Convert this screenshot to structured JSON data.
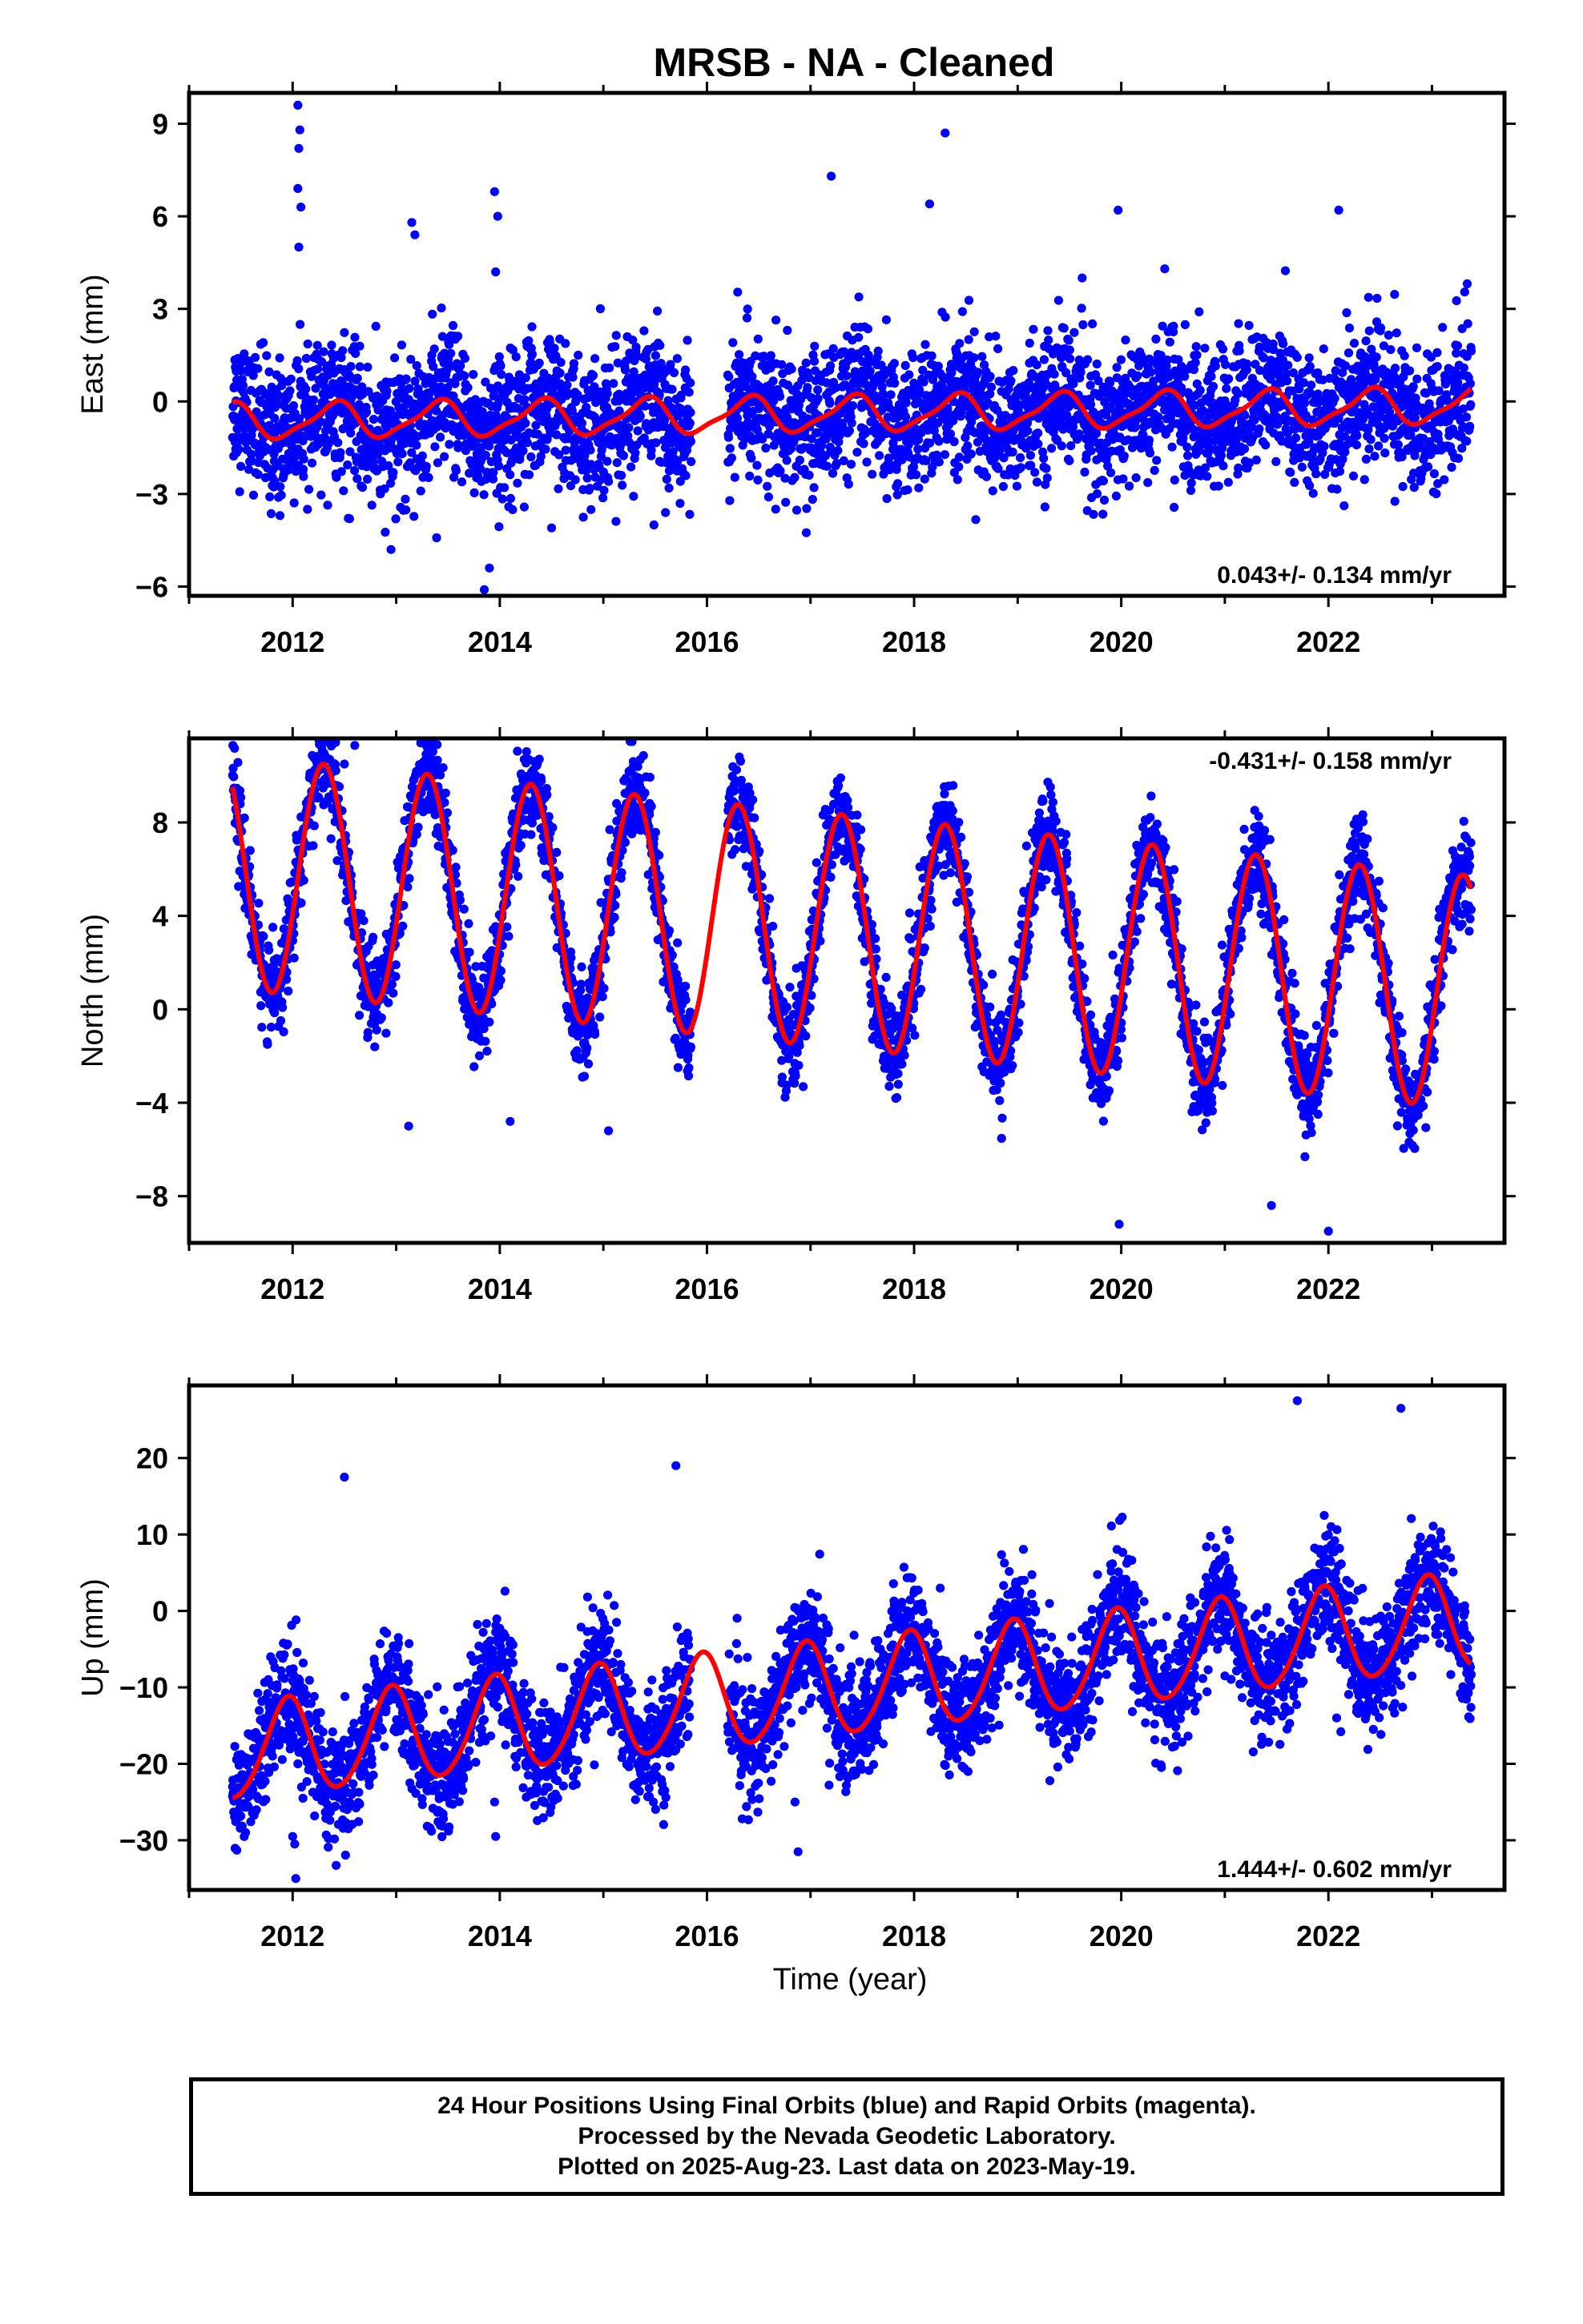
{
  "title": "MRSB  - NA - Cleaned",
  "xlabel": "Time (year)",
  "footer": {
    "line1": "24 Hour Positions Using Final Orbits (blue) and Rapid Orbits (magenta).",
    "line2": "Processed by the Nevada Geodetic Laboratory.",
    "line3": "Plotted on 2025-Aug-23. Last data on 2023-May-19."
  },
  "colors": {
    "points": "#0000ff",
    "model": "#ff0000",
    "axes": "#000000"
  },
  "chart_data": [
    {
      "type": "scatter",
      "name": "east",
      "ylabel": "East (mm)",
      "xlim": [
        2011.0,
        2023.7
      ],
      "ylim": [
        -6.3,
        10.0
      ],
      "yticks": [
        -6,
        -3,
        0,
        3,
        6,
        9
      ],
      "xticks": [
        2012,
        2014,
        2016,
        2018,
        2020,
        2022
      ],
      "rate_label": "0.043+/- 0.134 mm/yr",
      "rate_position": "bottom-right",
      "data_span": [
        2011.42,
        2023.38
      ],
      "gap": [
        2015.85,
        2016.2
      ],
      "model": {
        "offset": -0.4,
        "trend_mm_per_yr": 0.043,
        "annual_amp": 0.55,
        "annual_phase": 0.4,
        "semiannual_amp": 0.15
      },
      "scatter_sd": 1.1,
      "outliers": [
        [
          2012.05,
          9.6
        ],
        [
          2012.07,
          8.8
        ],
        [
          2012.06,
          8.2
        ],
        [
          2012.05,
          6.9
        ],
        [
          2012.08,
          6.3
        ],
        [
          2012.06,
          5.0
        ],
        [
          2013.15,
          5.8
        ],
        [
          2013.18,
          5.4
        ],
        [
          2013.95,
          6.8
        ],
        [
          2013.98,
          6.0
        ],
        [
          2013.96,
          4.2
        ],
        [
          2017.2,
          7.3
        ],
        [
          2018.15,
          6.4
        ],
        [
          2018.3,
          8.7
        ],
        [
          2019.97,
          6.2
        ],
        [
          2022.1,
          6.2
        ],
        [
          2012.55,
          -3.8
        ],
        [
          2012.95,
          -4.8
        ],
        [
          2013.85,
          -6.1
        ],
        [
          2013.9,
          -5.4
        ],
        [
          2014.5,
          -4.1
        ],
        [
          2015.6,
          -3.6
        ]
      ]
    },
    {
      "type": "scatter",
      "name": "north",
      "ylabel": "North (mm)",
      "xlim": [
        2011.0,
        2023.7
      ],
      "ylim": [
        -10.0,
        11.6
      ],
      "yticks": [
        -8,
        -4,
        0,
        4,
        8
      ],
      "xticks": [
        2012,
        2014,
        2016,
        2018,
        2020,
        2022
      ],
      "rate_label": "-0.431+/- 0.158 mm/yr",
      "rate_position": "top-right",
      "data_span": [
        2011.42,
        2023.38
      ],
      "gap": [
        2015.85,
        2016.2
      ],
      "model": {
        "offset": 3.3,
        "trend_mm_per_yr": -0.431,
        "annual_amp": 5.0,
        "annual_phase": 0.3,
        "semiannual_amp": 0.0
      },
      "scatter_sd": 1.0,
      "outliers": [
        [
          2012.5,
          10.5
        ],
        [
          2012.6,
          11.3
        ],
        [
          2013.12,
          -5.0
        ],
        [
          2014.1,
          -4.8
        ],
        [
          2015.05,
          -5.2
        ],
        [
          2019.98,
          -9.2
        ],
        [
          2022.0,
          -9.5
        ],
        [
          2021.45,
          -8.4
        ]
      ]
    },
    {
      "type": "scatter",
      "name": "up",
      "ylabel": "Up (mm)",
      "xlim": [
        2011.0,
        2023.7
      ],
      "ylim": [
        -36.5,
        29.5
      ],
      "yticks": [
        -30,
        -20,
        -10,
        0,
        10,
        20
      ],
      "xticks": [
        2012,
        2014,
        2016,
        2018,
        2020,
        2022
      ],
      "rate_label": "1.444+/- 0.602 mm/yr",
      "rate_position": "bottom-right",
      "data_span": [
        2011.42,
        2023.38
      ],
      "gap": [
        2015.85,
        2016.2
      ],
      "model": {
        "offset": -10.0,
        "trend_mm_per_yr": 1.444,
        "annual_amp": 6.2,
        "annual_phase": -0.05,
        "semiannual_amp": 0.6
      },
      "scatter_sd": 3.8,
      "outliers": [
        [
          2011.42,
          -23.0
        ],
        [
          2012.0,
          -29.5
        ],
        [
          2012.02,
          -30.5
        ],
        [
          2012.03,
          -35.0
        ],
        [
          2012.05,
          -20.0
        ],
        [
          2012.1,
          -24.5
        ],
        [
          2013.95,
          -25.0
        ],
        [
          2013.96,
          -29.5
        ],
        [
          2016.85,
          -25.0
        ],
        [
          2016.88,
          -31.5
        ],
        [
          2022.08,
          -14.0
        ],
        [
          2022.12,
          -15.8
        ],
        [
          2021.7,
          27.5
        ],
        [
          2022.7,
          26.5
        ],
        [
          2015.7,
          19.0
        ],
        [
          2012.5,
          17.5
        ]
      ]
    }
  ]
}
